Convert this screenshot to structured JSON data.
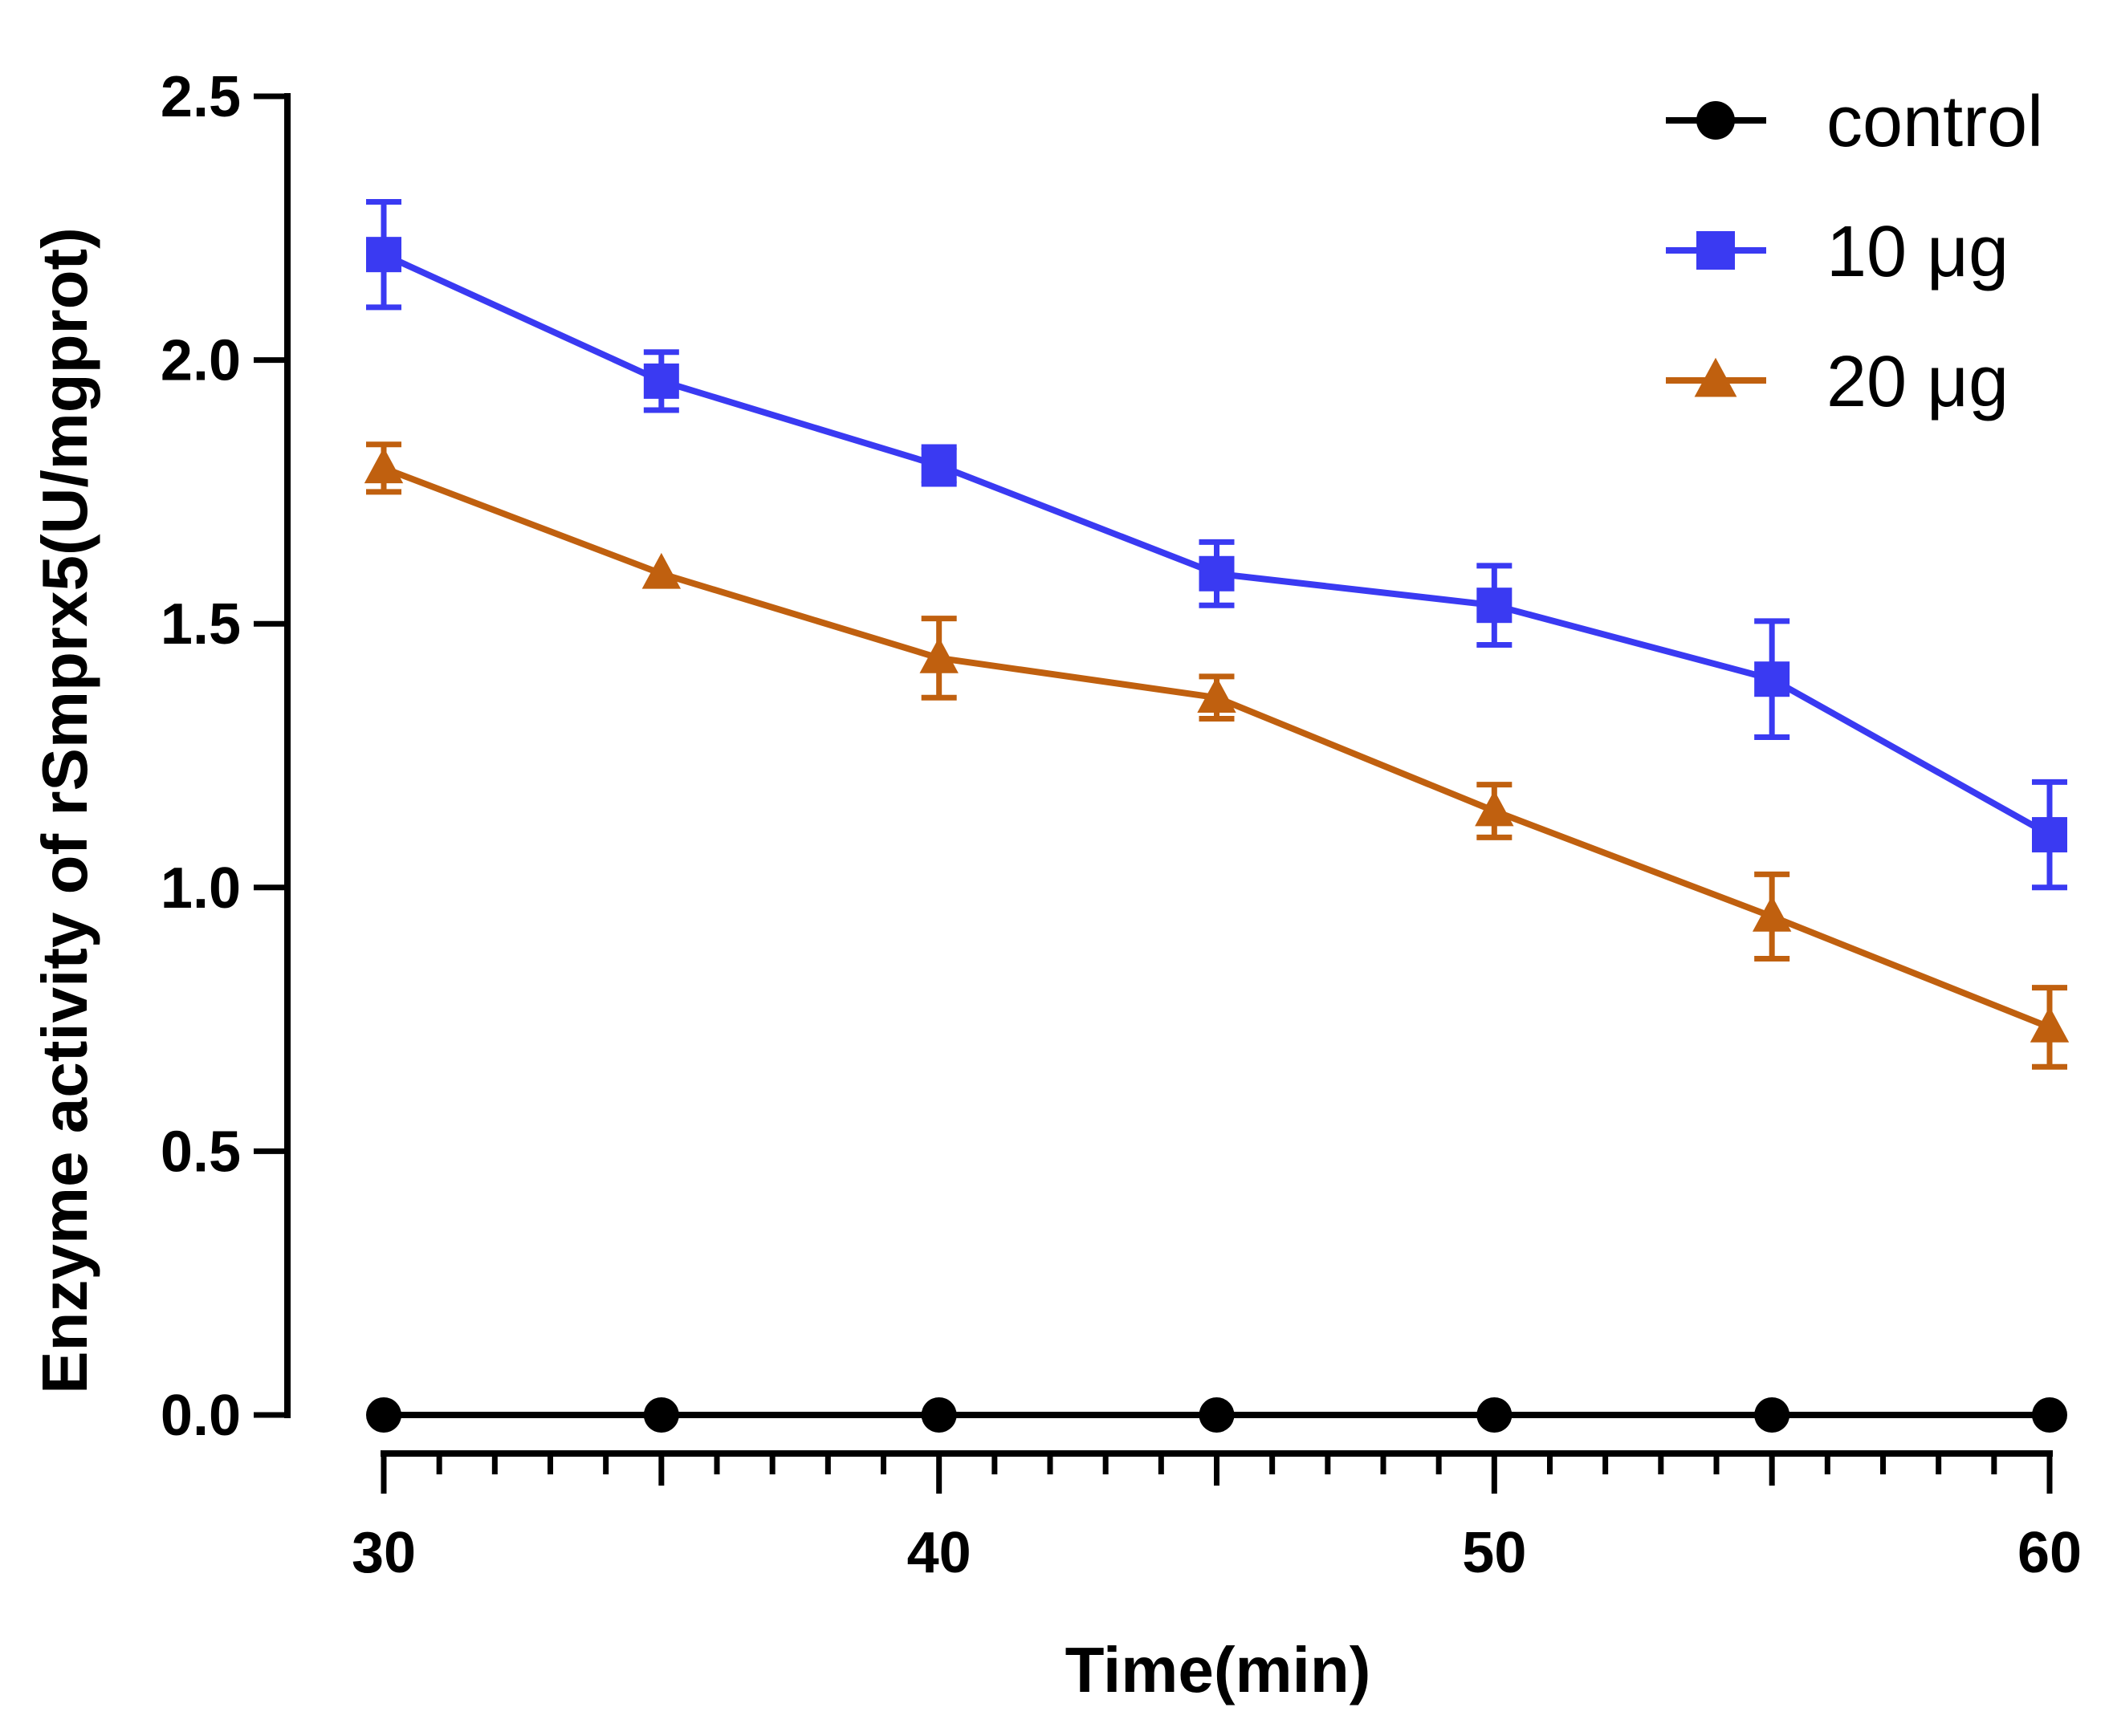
{
  "chart_data": {
    "type": "line",
    "title": "",
    "xlabel": "Time(min)",
    "ylabel": "Enzyme activity of rSmprx5(U/mgprot)",
    "x": [
      30,
      35,
      40,
      45,
      50,
      55,
      60
    ],
    "xlim": [
      30,
      60
    ],
    "ylim": [
      0,
      2.5
    ],
    "x_ticks": [
      30,
      40,
      50,
      60
    ],
    "x_tick_labels": [
      "30",
      "40",
      "50",
      "60"
    ],
    "y_ticks": [
      0,
      0.5,
      1,
      1.5,
      2,
      2.5
    ],
    "y_tick_labels": [
      "0.0",
      "0.5",
      "1.0",
      "1.5",
      "2.0",
      "2.5"
    ],
    "x_minor_tick_step": 1,
    "grid": false,
    "legend_position": "top-right",
    "series": [
      {
        "name": "control",
        "color": "#000000",
        "marker": "circle",
        "values": [
          0,
          0,
          0,
          0,
          0,
          0,
          0
        ],
        "errors": [
          0,
          0,
          0,
          0,
          0,
          0,
          0
        ]
      },
      {
        "name": "10 μg",
        "color": "#3a3af2",
        "marker": "square",
        "values": [
          2.2,
          1.96,
          1.8,
          1.595,
          1.535,
          1.395,
          1.1
        ],
        "errors": [
          0.1,
          0.055,
          0.035,
          0.06,
          0.075,
          0.11,
          0.1
        ]
      },
      {
        "name": "20 μg",
        "color": "#c0600f",
        "marker": "triangle",
        "values": [
          1.795,
          1.595,
          1.435,
          1.36,
          1.145,
          0.945,
          0.735
        ],
        "errors": [
          0.045,
          0.0,
          0.075,
          0.04,
          0.05,
          0.08,
          0.075
        ]
      }
    ]
  }
}
